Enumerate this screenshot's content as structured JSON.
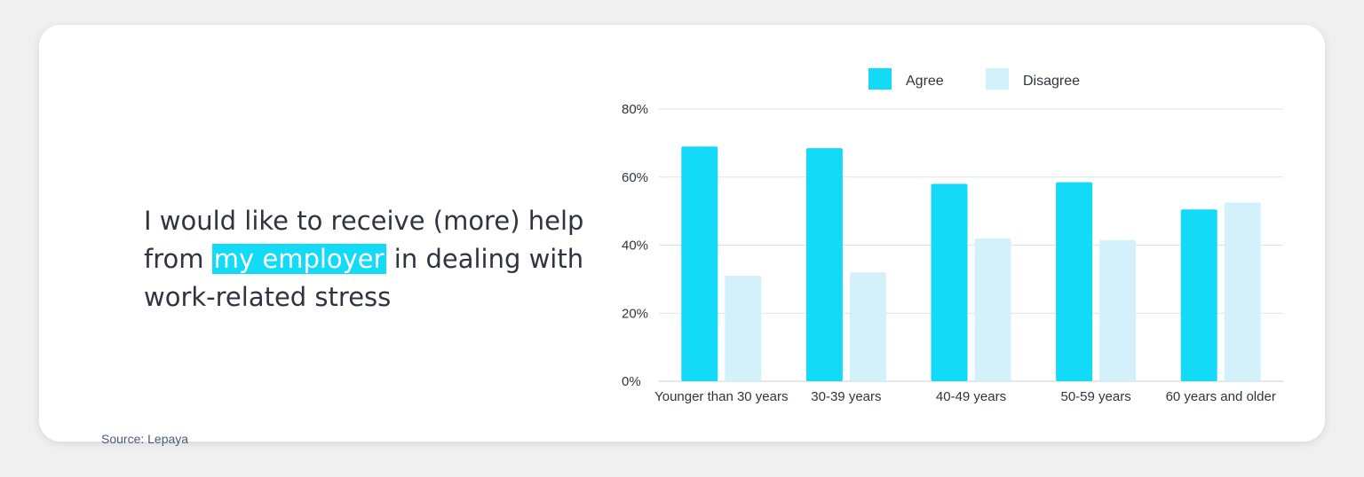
{
  "statement": {
    "before": "I would like to receive (more) help from ",
    "highlight": "my employer",
    "after": " in dealing with work-related stress"
  },
  "source": "Source: Lepaya",
  "colors": {
    "agree": "#13daf6",
    "disagree": "#d3f1fb",
    "highlight": "#13daf6"
  },
  "chart_data": {
    "type": "bar",
    "categories": [
      "Younger than 30 years",
      "30-39 years",
      "40-49 years",
      "50-59 years",
      "60 years and older"
    ],
    "series": [
      {
        "name": "Agree",
        "values": [
          69,
          68.5,
          58,
          58.5,
          50.5
        ]
      },
      {
        "name": "Disagree",
        "values": [
          31,
          32,
          42,
          41.5,
          52.5
        ]
      }
    ],
    "yticks": [
      "0%",
      "20%",
      "40%",
      "60%",
      "80%"
    ],
    "ylim": [
      0,
      80
    ],
    "grid": true,
    "legend": "top-center"
  }
}
